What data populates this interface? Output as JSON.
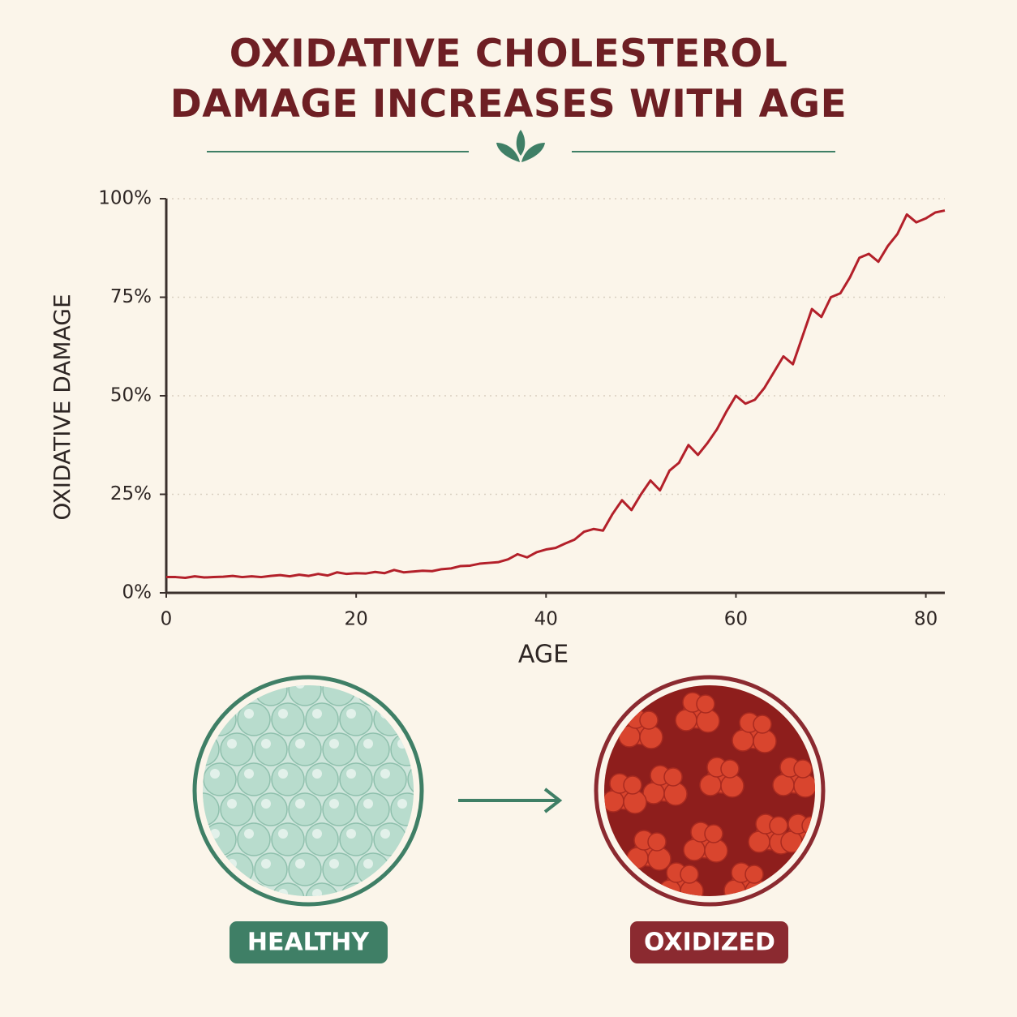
{
  "chart_data": {
    "type": "line",
    "title": "OXIDATIVE CHOLESTEROL DAMAGE INCREASES WITH AGE",
    "x_label": "AGE",
    "y_label": "OXIDATIVE DAMAGE",
    "x": [
      0,
      1,
      2,
      3,
      4,
      5,
      6,
      7,
      8,
      9,
      10,
      11,
      12,
      13,
      14,
      15,
      16,
      17,
      18,
      19,
      20,
      21,
      22,
      23,
      24,
      25,
      26,
      27,
      28,
      29,
      30,
      31,
      32,
      33,
      34,
      35,
      36,
      37,
      38,
      39,
      40,
      41,
      42,
      43,
      44,
      45,
      46,
      47,
      48,
      49,
      50,
      51,
      52,
      53,
      54,
      55,
      56,
      57,
      58,
      59,
      60,
      61,
      62,
      63,
      64,
      65,
      66,
      67,
      68,
      69,
      70,
      71,
      72,
      73,
      74,
      75,
      76,
      77,
      78,
      79,
      80,
      81,
      82
    ],
    "series": [
      {
        "name": "Oxidative damage",
        "color": "#b3202a",
        "values": [
          4,
          4,
          3.8,
          4.2,
          3.9,
          4,
          4.1,
          4.3,
          4,
          4.2,
          4,
          4.3,
          4.5,
          4.2,
          4.6,
          4.3,
          4.8,
          4.4,
          5.2,
          4.8,
          5,
          4.9,
          5.3,
          5,
          5.8,
          5.2,
          5.4,
          5.6,
          5.5,
          6,
          6.2,
          6.8,
          6.9,
          7.4,
          7.6,
          7.8,
          8.5,
          9.8,
          9,
          10.3,
          11,
          11.4,
          12.5,
          13.5,
          15.5,
          16.2,
          15.8,
          20,
          23.5,
          21,
          25,
          28.5,
          26,
          31,
          33,
          37.5,
          35,
          38,
          41.5,
          46,
          50,
          48,
          49,
          52,
          56,
          60,
          58,
          65,
          72,
          70,
          75,
          76,
          80,
          85,
          86,
          84,
          88,
          91,
          96,
          94,
          95,
          96.5,
          97
        ]
      }
    ],
    "xlim": [
      0,
      82
    ],
    "ylim": [
      0,
      100
    ],
    "xticks": [
      0,
      20,
      40,
      60,
      80
    ],
    "yticks": [
      {
        "value": 0,
        "label": "0%"
      },
      {
        "value": 25,
        "label": "25%"
      },
      {
        "value": 50,
        "label": "50%"
      },
      {
        "value": 75,
        "label": "75%"
      },
      {
        "value": 100,
        "label": "100%"
      }
    ],
    "grid": true
  },
  "illustration": {
    "left_label": "HEALTHY",
    "right_label": "OXIDIZED"
  }
}
